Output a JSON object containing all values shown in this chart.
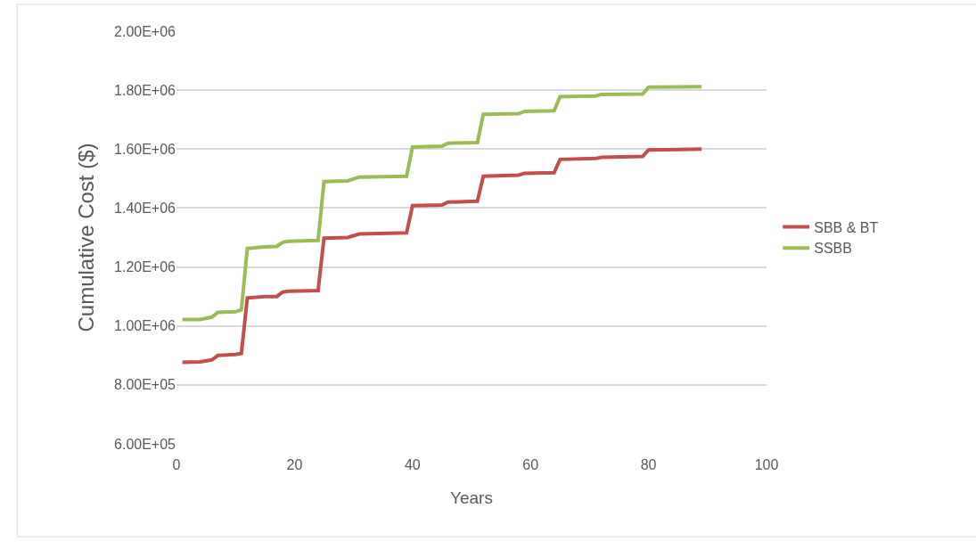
{
  "chart_data": {
    "type": "line",
    "xlabel": "Years",
    "ylabel": "Cumulative Cost ($)",
    "xlim": [
      0,
      100
    ],
    "xticks": [
      0,
      20,
      40,
      60,
      80,
      100
    ],
    "ylim": [
      600000,
      2000000
    ],
    "yticks": [
      {
        "value": 600000,
        "label": "6.00E+05"
      },
      {
        "value": 800000,
        "label": "8.00E+05"
      },
      {
        "value": 1000000,
        "label": "1.00E+06"
      },
      {
        "value": 1200000,
        "label": "1.20E+06"
      },
      {
        "value": 1400000,
        "label": "1.40E+06"
      },
      {
        "value": 1600000,
        "label": "1.60E+06"
      },
      {
        "value": 1800000,
        "label": "1.80E+06"
      },
      {
        "value": 2000000,
        "label": "2.00E+06"
      }
    ],
    "grid": "y",
    "legend": "right",
    "marker": "none",
    "line_style": "solid",
    "x": [
      1,
      4,
      6,
      7,
      10,
      11,
      12,
      15,
      17,
      18,
      19,
      24,
      25,
      29,
      31,
      39,
      40,
      45,
      46,
      51,
      52,
      58,
      59,
      64,
      65,
      71,
      72,
      79,
      80,
      89
    ],
    "series": [
      {
        "name": "SBB & BT",
        "color": "#c0504d",
        "values": [
          877000,
          878000,
          885000,
          900000,
          903000,
          907000,
          1095000,
          1100000,
          1100000,
          1115000,
          1118000,
          1120000,
          1298000,
          1300000,
          1312000,
          1316000,
          1408000,
          1410000,
          1420000,
          1423000,
          1508000,
          1512000,
          1518000,
          1520000,
          1565000,
          1568000,
          1572000,
          1575000,
          1597000,
          1600000
        ]
      },
      {
        "name": "SSBB",
        "color": "#9bbb59",
        "values": [
          1022000,
          1022000,
          1030000,
          1046000,
          1048000,
          1055000,
          1263000,
          1268000,
          1270000,
          1284000,
          1287000,
          1290000,
          1490000,
          1492000,
          1505000,
          1508000,
          1607000,
          1610000,
          1620000,
          1622000,
          1718000,
          1720000,
          1728000,
          1730000,
          1778000,
          1780000,
          1785000,
          1787000,
          1810000,
          1812000
        ]
      }
    ]
  }
}
